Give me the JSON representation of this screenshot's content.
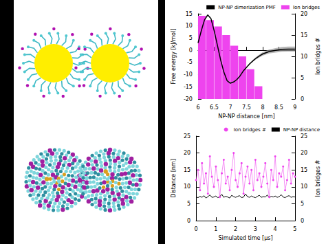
{
  "chart_data": [
    {
      "type": "line",
      "x_label": "NP-NP distance [nm]",
      "y_label": "Free energy [kJ/mol]",
      "y2_label": "Ion bridges #",
      "xlim": [
        6,
        9
      ],
      "xticks": [
        6,
        6.5,
        7,
        7.5,
        8,
        8.5,
        9
      ],
      "ylim": [
        -20,
        15
      ],
      "yticks": [
        -20,
        -15,
        -10,
        -5,
        0,
        5,
        10,
        15
      ],
      "y2lim": [
        0,
        20
      ],
      "y2ticks": [
        0,
        5,
        10,
        15,
        20
      ],
      "grid": false,
      "legend": "upper right",
      "series": [
        {
          "name": "NP-NP dimerization PMF",
          "type": "line",
          "color": "#000000",
          "x": [
            6.0,
            6.1,
            6.2,
            6.3,
            6.4,
            6.5,
            6.6,
            6.7,
            6.8,
            6.9,
            7.0,
            7.1,
            7.2,
            7.3,
            7.4,
            7.5,
            7.6,
            7.7,
            7.8,
            7.9,
            8.0,
            8.2,
            8.4,
            8.6,
            8.8,
            9.0
          ],
          "values": [
            3,
            8,
            12.5,
            14.5,
            13,
            8,
            2,
            -4,
            -9,
            -12.5,
            -13.5,
            -13,
            -12,
            -10.5,
            -8.5,
            -7,
            -5.5,
            -4.3,
            -3.2,
            -2.3,
            -1.5,
            -0.5,
            0,
            0.4,
            0.5,
            0.5
          ],
          "errors": [
            0.2,
            0.2,
            0.2,
            0.2,
            0.2,
            0.2,
            0.2,
            0.2,
            0.2,
            0.2,
            0.2,
            0.2,
            0.2,
            0.2,
            0.2,
            0.2,
            0.3,
            0.4,
            0.5,
            0.6,
            0.7,
            0.8,
            0.9,
            1.0,
            1.0,
            1.0
          ]
        },
        {
          "name": "Ion bridges",
          "type": "histogram",
          "color": "#ee44ee",
          "axis": "y2",
          "bins": [
            6,
            6.25,
            6.5,
            6.75,
            7,
            7.25,
            7.5,
            7.75,
            8
          ],
          "values": [
            19.5,
            18.5,
            17,
            15,
            12.5,
            10,
            7,
            3
          ]
        }
      ]
    },
    {
      "type": "line",
      "x_label": "Simulated time [μs]",
      "y_label": "Distance [nm]",
      "y2_label": "Ion bridges #",
      "xlim": [
        0,
        5
      ],
      "xticks": [
        0,
        1,
        2,
        3,
        4,
        5
      ],
      "ylim": [
        0,
        25
      ],
      "yticks": [
        0,
        5,
        10,
        15,
        20,
        25
      ],
      "y2lim": [
        0,
        25
      ],
      "y2ticks": [
        0,
        5,
        10,
        15,
        20,
        25
      ],
      "grid": false,
      "legend": "upper right",
      "x": [
        0,
        0.1,
        0.2,
        0.3,
        0.4,
        0.5,
        0.6,
        0.7,
        0.8,
        0.9,
        1.0,
        1.1,
        1.2,
        1.3,
        1.4,
        1.5,
        1.6,
        1.7,
        1.8,
        1.9,
        2.0,
        2.1,
        2.2,
        2.3,
        2.4,
        2.5,
        2.6,
        2.7,
        2.8,
        2.9,
        3.0,
        3.1,
        3.2,
        3.3,
        3.4,
        3.5,
        3.6,
        3.7,
        3.8,
        3.9,
        4.0,
        4.1,
        4.2,
        4.3,
        4.4,
        4.5,
        4.6,
        4.7,
        4.8,
        4.9,
        5.0
      ],
      "series": [
        {
          "name": "Ion bridges #",
          "color": "#ee44ee",
          "axis": "y2",
          "marker": "circle",
          "line_style": "solid",
          "values": [
            12,
            15,
            9,
            17,
            11,
            14,
            8,
            19,
            13,
            10,
            16,
            12,
            7,
            14,
            18,
            11,
            13,
            9,
            15,
            20,
            12,
            10,
            14,
            17,
            8,
            13,
            16,
            11,
            15,
            9,
            18,
            12,
            14,
            10,
            13,
            17,
            11,
            7,
            15,
            12,
            19,
            10,
            14,
            13,
            16,
            9,
            12,
            18,
            11,
            14,
            13
          ]
        },
        {
          "name": "NP-NP distance",
          "color": "#000000",
          "line_style": "solid",
          "values": [
            7.0,
            6.8,
            7.2,
            6.9,
            7.4,
            6.7,
            7.1,
            7.6,
            6.9,
            7.0,
            7.3,
            6.8,
            7.1,
            7.8,
            6.9,
            7.2,
            7.0,
            6.7,
            7.5,
            7.1,
            6.9,
            7.2,
            7.4,
            6.8,
            7.0,
            7.9,
            7.1,
            6.9,
            7.3,
            7.0,
            6.8,
            7.2,
            7.5,
            6.9,
            7.1,
            7.0,
            7.6,
            6.8,
            7.2,
            7.0,
            7.3,
            6.9,
            7.1,
            7.7,
            7.0,
            6.8,
            7.2,
            7.4,
            6.9,
            7.1,
            7.0
          ]
        }
      ]
    }
  ]
}
